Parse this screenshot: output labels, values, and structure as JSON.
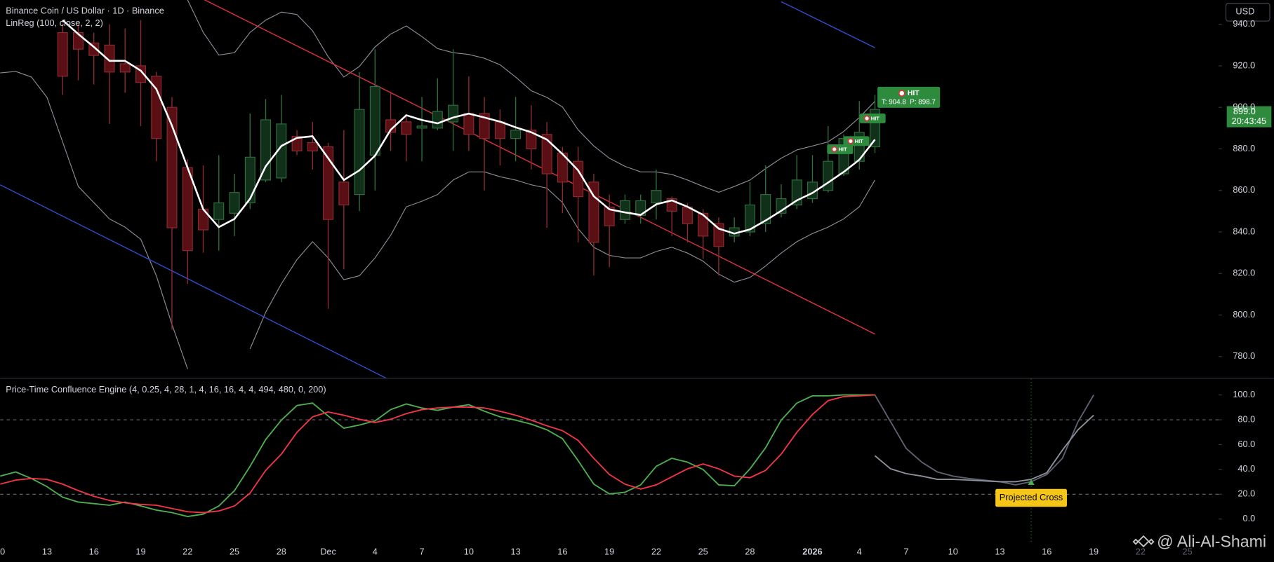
{
  "chart_data": [
    {
      "type": "candlestick",
      "title": "Binance Coin / US Dollar · 1D · Binance",
      "subtitle": "LinReg (100, close, 2, 2)",
      "currency": "USD",
      "categories": [
        "0",
        null,
        null,
        "13",
        null,
        null,
        "16",
        null,
        null,
        "19",
        null,
        null,
        "22",
        null,
        null,
        "25",
        null,
        null,
        "28",
        null,
        null,
        "Dec",
        null,
        null,
        "4",
        null,
        null,
        "7",
        null,
        null,
        "10",
        null,
        null,
        "13",
        null,
        null,
        "16",
        null,
        null,
        "19",
        null,
        null,
        "22",
        null,
        null,
        "25",
        null,
        null,
        "28",
        null,
        null,
        null,
        "2026",
        null,
        null,
        "4",
        null,
        null,
        "7",
        null,
        null,
        "10",
        null,
        null,
        "13",
        null,
        null,
        "16",
        null,
        null,
        "19",
        null,
        null,
        "22",
        null,
        null,
        "25"
      ],
      "open": [
        null,
        null,
        null,
        null,
        936,
        936,
        931,
        930,
        921,
        920,
        915,
        900,
        871,
        851,
        846,
        849,
        854,
        865,
        866,
        886,
        883,
        881,
        864,
        858,
        877,
        894,
        893,
        890,
        890,
        893,
        897,
        897,
        893,
        885,
        889,
        887,
        878,
        874,
        864,
        852,
        846,
        848,
        854,
        856,
        852,
        849,
        844,
        838,
        840,
        844,
        849,
        853,
        856,
        860,
        868,
        874,
        881,
        null,
        null,
        null,
        null,
        null,
        null,
        null,
        null,
        null,
        null,
        null,
        null,
        null,
        null,
        null,
        null,
        null,
        null,
        null,
        null
      ],
      "high": [
        null,
        null,
        null,
        null,
        940,
        940,
        936,
        940,
        938,
        942,
        917,
        905,
        875,
        872,
        877,
        868,
        897,
        904,
        906,
        889,
        893,
        883,
        889,
        917,
        928,
        907,
        896,
        905,
        914,
        928,
        915,
        905,
        899,
        905,
        901,
        893,
        881,
        881,
        868,
        858,
        858,
        858,
        870,
        857,
        854,
        851,
        847,
        847,
        864,
        872,
        863,
        877,
        877,
        891,
        887,
        903,
        906,
        null,
        null,
        null,
        null,
        null,
        null,
        null,
        null,
        null,
        null,
        null,
        null,
        null,
        null,
        null,
        null,
        null,
        null,
        null,
        null
      ],
      "low": [
        null,
        null,
        null,
        null,
        906,
        913,
        911,
        892,
        907,
        891,
        874,
        793,
        815,
        830,
        831,
        838,
        851,
        864,
        864,
        877,
        870,
        803,
        822,
        850,
        860,
        879,
        874,
        874,
        889,
        879,
        879,
        860,
        872,
        874,
        870,
        842,
        849,
        835,
        819,
        823,
        844,
        844,
        846,
        838,
        835,
        827,
        819,
        835,
        838,
        840,
        847,
        851,
        854,
        859,
        867,
        870,
        878,
        null,
        null,
        null,
        null,
        null,
        null,
        null,
        null,
        null,
        null,
        null,
        null,
        null,
        null,
        null,
        null,
        null,
        null,
        null,
        null
      ],
      "close": [
        null,
        null,
        null,
        null,
        915,
        928,
        925,
        917,
        917,
        912,
        885,
        842,
        831,
        841,
        854,
        859,
        876,
        894,
        892,
        879,
        879,
        846,
        853,
        899,
        910,
        888,
        887,
        891,
        898,
        901,
        887,
        885,
        885,
        889,
        880,
        868,
        864,
        857,
        835,
        843,
        855,
        855,
        860,
        850,
        844,
        838,
        833,
        842,
        853,
        858,
        856,
        865,
        864,
        874,
        885,
        888,
        899,
        null,
        null,
        null,
        null,
        null,
        null,
        null,
        null,
        null,
        null,
        null,
        null,
        null,
        null,
        null,
        null,
        null,
        null,
        null,
        null
      ],
      "up_fill": "#10301a",
      "up_stroke": "#2e6e3c",
      "down_fill": "#5a0f14",
      "down_stroke": "#8c2b31",
      "linreg": {
        "color": "#ffffff",
        "values": [
          null,
          null,
          null,
          null,
          942.0,
          935.3,
          929.1,
          922.4,
          922.4,
          917.7,
          908.8,
          891.2,
          870.9,
          850.9,
          842.3,
          846.3,
          856.0,
          871.6,
          881.4,
          885.3,
          886.1,
          875.5,
          865.0,
          869.7,
          876.7,
          889.2,
          896.2,
          893.9,
          892.3,
          895.1,
          897.0,
          895.1,
          893.1,
          890.4,
          888.0,
          884.5,
          877.5,
          869.7,
          857.2,
          850.9,
          849.4,
          848.2,
          853.3,
          855.2,
          852.1,
          848.2,
          841.6,
          839.2,
          841.2,
          845.5,
          850.2,
          855.2,
          858.8,
          863.8,
          868.9,
          874.8,
          884.5,
          null,
          null,
          null,
          null,
          null,
          null,
          null,
          null,
          null,
          null,
          null,
          null,
          null,
          null,
          null,
          null,
          null,
          null,
          null,
          null
        ]
      },
      "bands": [
        {
          "color": "#8a8d96",
          "values": [
            null,
            null,
            null,
            null,
            null,
            null,
            null,
            null,
            null,
            null,
            null,
            null,
            951.7,
            936.1,
            925.2,
            926.3,
            936.1,
            942.0,
            945.9,
            944.7,
            936.9,
            924.4,
            914.6,
            919.7,
            929.1,
            935.3,
            939.2,
            934.1,
            928.3,
            926.3,
            925.5,
            923.6,
            920.5,
            914.6,
            908.0,
            904.8,
            900.2,
            889.2,
            881.4,
            875.5,
            871.6,
            868.9,
            868.9,
            867.7,
            865.0,
            861.9,
            859.1,
            861.9,
            865.0,
            870.5,
            875.5,
            879.5,
            881.4,
            883.4,
            888.4,
            895.1,
            902.9,
            null,
            null,
            null,
            null,
            null,
            null,
            null,
            null,
            null,
            null,
            null,
            null,
            null,
            null,
            null,
            null,
            null,
            null,
            null,
            null
          ]
        },
        {
          "color": "#8a8d96",
          "values": [
            916.6,
            917.3,
            914.6,
            904.8,
            883.4,
            861.9,
            854.1,
            846.3,
            842.3,
            836.5,
            818.9,
            795.5,
            774.0,
            null,
            null,
            null,
            783.7,
            801.3,
            815.0,
            826.7,
            835.3,
            827.5,
            817.0,
            818.9,
            827.5,
            838.4,
            852.1,
            854.8,
            858.0,
            865.0,
            868.9,
            868.9,
            866.6,
            865.0,
            862.7,
            861.1,
            854.1,
            841.6,
            832.6,
            828.7,
            827.5,
            827.5,
            830.6,
            832.6,
            829.8,
            825.9,
            819.7,
            815.8,
            818.1,
            823.6,
            829.8,
            835.3,
            839.2,
            842.3,
            846.3,
            852.1,
            865.0,
            null,
            null,
            null,
            null,
            null,
            null,
            null,
            null,
            null,
            null,
            null,
            null,
            null,
            null,
            null,
            null,
            null,
            null,
            null,
            null
          ]
        }
      ],
      "trend_lines": [
        {
          "color": "#e0313f",
          "points": [
            [
              13,
              952.1
            ],
            [
              56,
              790.8
            ]
          ]
        },
        {
          "color": "#2f4fd0",
          "points": [
            [
              0,
              862.7
            ],
            [
              25,
              768.5
            ]
          ]
        },
        {
          "color": "#2f4fd0",
          "points": [
            [
              50,
              950.9
            ],
            [
              56,
              928.7
            ]
          ]
        }
      ],
      "hits": [
        {
          "label": "HIT",
          "detail": "T: 904.8  P: 898.7"
        },
        {
          "label": "HIT"
        },
        {
          "label": "HIT"
        },
        {
          "label": "HIT"
        }
      ],
      "hit_color": "#2e8b3e",
      "last_price": {
        "value": 899,
        "label": "899.0"
      },
      "countdown": "20:43:45",
      "ylim": [
        769.7,
        951.7
      ],
      "yticks": [
        {
          "value": 940,
          "label": "940.0"
        },
        {
          "value": 920,
          "label": "920.0"
        },
        {
          "value": 900,
          "label": "900.0"
        },
        {
          "value": 880,
          "label": "880.0"
        },
        {
          "value": 860,
          "label": "860.0"
        },
        {
          "value": 840,
          "label": "840.0"
        },
        {
          "value": 820,
          "label": "820.0"
        },
        {
          "value": 800,
          "label": "800.0"
        },
        {
          "value": 780,
          "label": "780.0"
        }
      ],
      "grid": false
    },
    {
      "type": "line",
      "title": "Price-Time Confluence Engine (4, 0.25, 4, 28, 1, 4, 16, 16, 4, 4, 494, 480, 0, 200)",
      "series": [
        {
          "color": "#4caf50",
          "values": [
            34.6,
            37.9,
            32.7,
            26.1,
            17.6,
            13.7,
            12.4,
            11.1,
            13.7,
            10.5,
            7.2,
            5.2,
            2.0,
            3.9,
            10.5,
            22.9,
            42.5,
            64.1,
            79.7,
            91.5,
            93.5,
            83.0,
            73.2,
            75.8,
            79.1,
            88.2,
            92.8,
            89.5,
            87.6,
            90.2,
            92.2,
            86.9,
            82.4,
            79.7,
            76.5,
            71.9,
            64.7,
            47.1,
            28.1,
            20.3,
            21.6,
            27.5,
            42.5,
            49.0,
            45.8,
            39.9,
            27.5,
            26.8,
            40.5,
            57.5,
            79.7,
            93.5,
            99.3,
            99.3,
            100,
            100,
            100,
            null,
            null,
            null,
            null,
            null,
            null,
            null,
            null,
            null,
            null,
            null,
            null,
            null,
            null,
            null,
            null,
            null,
            null,
            null,
            null
          ]
        },
        {
          "color": "#f23645",
          "values": [
            28.1,
            31.4,
            32.7,
            32.0,
            28.1,
            22.9,
            18.3,
            15.0,
            13.1,
            11.8,
            11.1,
            8.5,
            5.9,
            5.2,
            6.5,
            10.5,
            20.9,
            39.2,
            52.3,
            69.9,
            82.4,
            86.3,
            83.7,
            80.4,
            77.8,
            80.4,
            85.0,
            88.2,
            89.5,
            90.2,
            90.2,
            89.5,
            86.9,
            83.7,
            79.7,
            75.2,
            71.2,
            63.4,
            49.0,
            35.9,
            28.1,
            24.2,
            27.5,
            34.0,
            40.5,
            44.4,
            40.5,
            34.6,
            33.3,
            39.2,
            52.3,
            69.9,
            84.3,
            95.4,
            98.7,
            99.3,
            100,
            null,
            null,
            null,
            null,
            null,
            null,
            null,
            null,
            null,
            null,
            null,
            null,
            null,
            null,
            null,
            null,
            null,
            null,
            null,
            null
          ]
        },
        {
          "color": "#5f6270",
          "values": [
            null,
            null,
            null,
            null,
            null,
            null,
            null,
            null,
            null,
            null,
            null,
            null,
            null,
            null,
            null,
            null,
            null,
            null,
            null,
            null,
            null,
            null,
            null,
            null,
            null,
            null,
            null,
            null,
            null,
            null,
            null,
            null,
            null,
            null,
            null,
            null,
            null,
            null,
            null,
            null,
            null,
            null,
            null,
            null,
            null,
            null,
            null,
            null,
            null,
            null,
            null,
            null,
            null,
            null,
            null,
            null,
            100,
            78.4,
            56.9,
            45.8,
            37.9,
            34.6,
            32.7,
            31.4,
            30.1,
            27.5,
            30.1,
            35.9,
            49.0,
            78.4,
            100,
            null,
            null,
            null,
            null,
            null,
            null
          ]
        },
        {
          "color": "#8e919a",
          "values": [
            null,
            null,
            null,
            null,
            null,
            null,
            null,
            null,
            null,
            null,
            null,
            null,
            null,
            null,
            null,
            null,
            null,
            null,
            null,
            null,
            null,
            null,
            null,
            null,
            null,
            null,
            null,
            null,
            null,
            null,
            null,
            null,
            null,
            null,
            null,
            null,
            null,
            null,
            null,
            null,
            null,
            null,
            null,
            null,
            null,
            null,
            null,
            null,
            null,
            null,
            null,
            null,
            null,
            null,
            null,
            null,
            51.0,
            40.5,
            36.6,
            34.6,
            32.0,
            32.0,
            31.4,
            30.7,
            30.1,
            30.1,
            32.0,
            37.3,
            55.6,
            71.9,
            83.7,
            null,
            null,
            null,
            null,
            null,
            null
          ]
        }
      ],
      "dashed_levels": [
        80,
        20
      ],
      "annotation": {
        "text": "Projected Cross",
        "value": 30.1,
        "color": "#f5c518"
      },
      "watermark": "@ Ali-Al-Shami",
      "ylim": [
        -18.3,
        113.1
      ],
      "yticks": [
        {
          "value": 100,
          "label": "100.0"
        },
        {
          "value": 80,
          "label": "80.0"
        },
        {
          "value": 60,
          "label": "60.0"
        },
        {
          "value": 40,
          "label": "40.0"
        },
        {
          "value": 20,
          "label": "20.0"
        },
        {
          "value": 0,
          "label": "0.0"
        }
      ],
      "grid": false
    }
  ]
}
